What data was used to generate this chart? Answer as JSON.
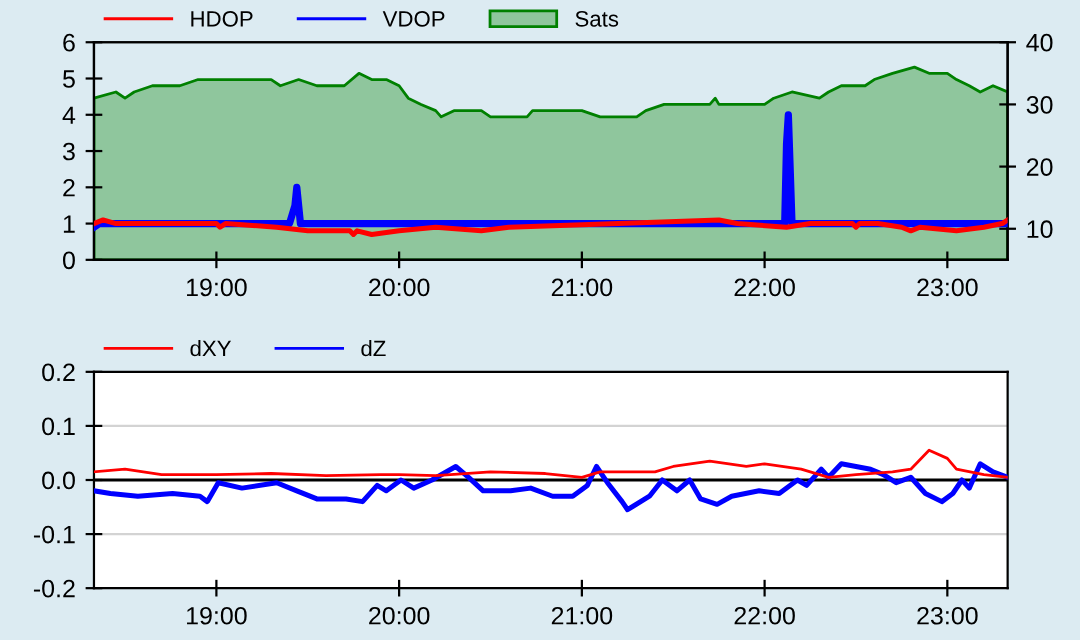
{
  "chart_data": [
    {
      "type": "line",
      "xlim": [
        18.33,
        23.33
      ],
      "xticks": [
        {
          "value": 19,
          "label": "19:00"
        },
        {
          "value": 20,
          "label": "20:00"
        },
        {
          "value": 21,
          "label": "21:00"
        },
        {
          "value": 22,
          "label": "22:00"
        },
        {
          "value": 23,
          "label": "23:00"
        }
      ],
      "ylim": [
        0,
        6
      ],
      "yticks": [
        0,
        1,
        2,
        3,
        4,
        5,
        6
      ],
      "y2lim": [
        5,
        40
      ],
      "y2ticks": [
        10,
        20,
        30,
        40
      ],
      "grid": false,
      "legend": "top left",
      "series": [
        {
          "name": "Sats",
          "type": "area",
          "axis": "y2",
          "color": "#008000",
          "x": [
            18.33,
            18.45,
            18.5,
            18.55,
            18.65,
            18.8,
            18.9,
            19.3,
            19.35,
            19.45,
            19.55,
            19.7,
            19.78,
            19.85,
            19.93,
            20.0,
            20.05,
            20.12,
            20.2,
            20.23,
            20.3,
            20.45,
            20.5,
            20.7,
            20.73,
            21.0,
            21.1,
            21.3,
            21.35,
            21.45,
            21.7,
            21.73,
            21.75,
            22.0,
            22.05,
            22.15,
            22.3,
            22.35,
            22.42,
            22.55,
            22.6,
            22.7,
            22.82,
            22.9,
            23.0,
            23.05,
            23.12,
            23.18,
            23.25,
            23.33
          ],
          "values": [
            31,
            32,
            31,
            32,
            33,
            33,
            34,
            34,
            33,
            34,
            33,
            33,
            35,
            34,
            34,
            33,
            31,
            30,
            29,
            28,
            29,
            29,
            28,
            28,
            29,
            29,
            28,
            28,
            29,
            30,
            30,
            31,
            30,
            30,
            31,
            32,
            31,
            32,
            33,
            33,
            34,
            35,
            36,
            35,
            35,
            34,
            33,
            32,
            33,
            32
          ]
        },
        {
          "name": "HDOP",
          "color": "#ff0000",
          "x": [
            18.33,
            18.38,
            18.45,
            19.0,
            19.02,
            19.05,
            19.33,
            19.5,
            19.73,
            19.75,
            19.77,
            19.85,
            20.0,
            20.2,
            20.45,
            20.6,
            21.2,
            21.75,
            21.85,
            22.12,
            22.25,
            22.48,
            22.5,
            22.52,
            22.62,
            22.75,
            22.8,
            22.85,
            23.05,
            23.2,
            23.3,
            23.33
          ],
          "values": [
            1.0,
            1.1,
            1.0,
            1.0,
            0.9,
            1.0,
            0.9,
            0.8,
            0.8,
            0.7,
            0.8,
            0.7,
            0.8,
            0.9,
            0.8,
            0.9,
            1.0,
            1.1,
            1.0,
            0.9,
            1.0,
            1.0,
            0.9,
            1.0,
            1.0,
            0.9,
            0.8,
            0.9,
            0.8,
            0.9,
            1.0,
            1.1
          ]
        },
        {
          "name": "VDOP",
          "color": "#0000ff",
          "x": [
            18.33,
            18.36,
            19.4,
            19.43,
            19.44,
            19.46,
            21.2,
            22.11,
            22.12,
            22.13,
            22.14,
            22.15,
            23.33
          ],
          "values": [
            0.9,
            1.0,
            1.0,
            1.5,
            2.0,
            1.0,
            1.0,
            1.0,
            3.2,
            4.0,
            2.5,
            1.0,
            1.0
          ]
        }
      ]
    },
    {
      "type": "line",
      "xlim": [
        18.33,
        23.33
      ],
      "xticks": [
        {
          "value": 19,
          "label": "19:00"
        },
        {
          "value": 20,
          "label": "20:00"
        },
        {
          "value": 21,
          "label": "21:00"
        },
        {
          "value": 22,
          "label": "22:00"
        },
        {
          "value": 23,
          "label": "23:00"
        }
      ],
      "ylim": [
        -0.2,
        0.2
      ],
      "yticks": [
        {
          "value": -0.2,
          "label": "-0.2"
        },
        {
          "value": -0.1,
          "label": "-0.1"
        },
        {
          "value": 0,
          "label": "0.0"
        },
        {
          "value": 0.1,
          "label": "0.1"
        },
        {
          "value": 0.2,
          "label": "0.2"
        }
      ],
      "grid": "y",
      "legend": "top left",
      "ref_lines": [
        {
          "axis": "y",
          "value": 0,
          "color": "#000000"
        }
      ],
      "series": [
        {
          "name": "dXY",
          "color": "#ff0000",
          "x": [
            18.33,
            18.5,
            18.7,
            19.0,
            19.3,
            19.6,
            19.9,
            20.0,
            20.2,
            20.5,
            20.8,
            21.0,
            21.1,
            21.4,
            21.5,
            21.7,
            21.9,
            22.0,
            22.2,
            22.35,
            22.5,
            22.7,
            22.8,
            22.9,
            23.0,
            23.05,
            23.2,
            23.33
          ],
          "values": [
            0.015,
            0.02,
            0.01,
            0.01,
            0.012,
            0.008,
            0.01,
            0.01,
            0.008,
            0.015,
            0.012,
            0.005,
            0.015,
            0.015,
            0.025,
            0.035,
            0.025,
            0.03,
            0.02,
            0.005,
            0.01,
            0.015,
            0.02,
            0.055,
            0.04,
            0.02,
            0.01,
            0.005
          ]
        },
        {
          "name": "dZ",
          "color": "#0000ff",
          "x": [
            18.33,
            18.42,
            18.57,
            18.76,
            18.91,
            18.95,
            19.01,
            19.14,
            19.33,
            19.44,
            19.55,
            19.71,
            19.8,
            19.88,
            19.93,
            20.01,
            20.08,
            20.18,
            20.31,
            20.38,
            20.46,
            20.61,
            20.72,
            20.84,
            20.95,
            21.03,
            21.08,
            21.14,
            21.22,
            21.25,
            21.37,
            21.44,
            21.52,
            21.59,
            21.65,
            21.74,
            21.82,
            21.97,
            22.08,
            22.18,
            22.23,
            22.31,
            22.35,
            22.42,
            22.58,
            22.65,
            22.72,
            22.8,
            22.88,
            22.97,
            23.03,
            23.08,
            23.12,
            23.18,
            23.25,
            23.33
          ],
          "values": [
            -0.02,
            -0.025,
            -0.03,
            -0.025,
            -0.03,
            -0.04,
            -0.005,
            -0.015,
            -0.005,
            -0.02,
            -0.035,
            -0.035,
            -0.04,
            -0.01,
            -0.02,
            0.0,
            -0.015,
            0.0,
            0.025,
            0.005,
            -0.02,
            -0.02,
            -0.015,
            -0.03,
            -0.03,
            -0.01,
            0.025,
            -0.005,
            -0.04,
            -0.055,
            -0.03,
            0.0,
            -0.02,
            0.0,
            -0.035,
            -0.045,
            -0.03,
            -0.02,
            -0.025,
            0.0,
            -0.01,
            0.02,
            0.005,
            0.03,
            0.02,
            0.01,
            -0.005,
            0.005,
            -0.025,
            -0.04,
            -0.025,
            0.0,
            -0.015,
            0.03,
            0.015,
            0.005
          ]
        }
      ]
    }
  ]
}
